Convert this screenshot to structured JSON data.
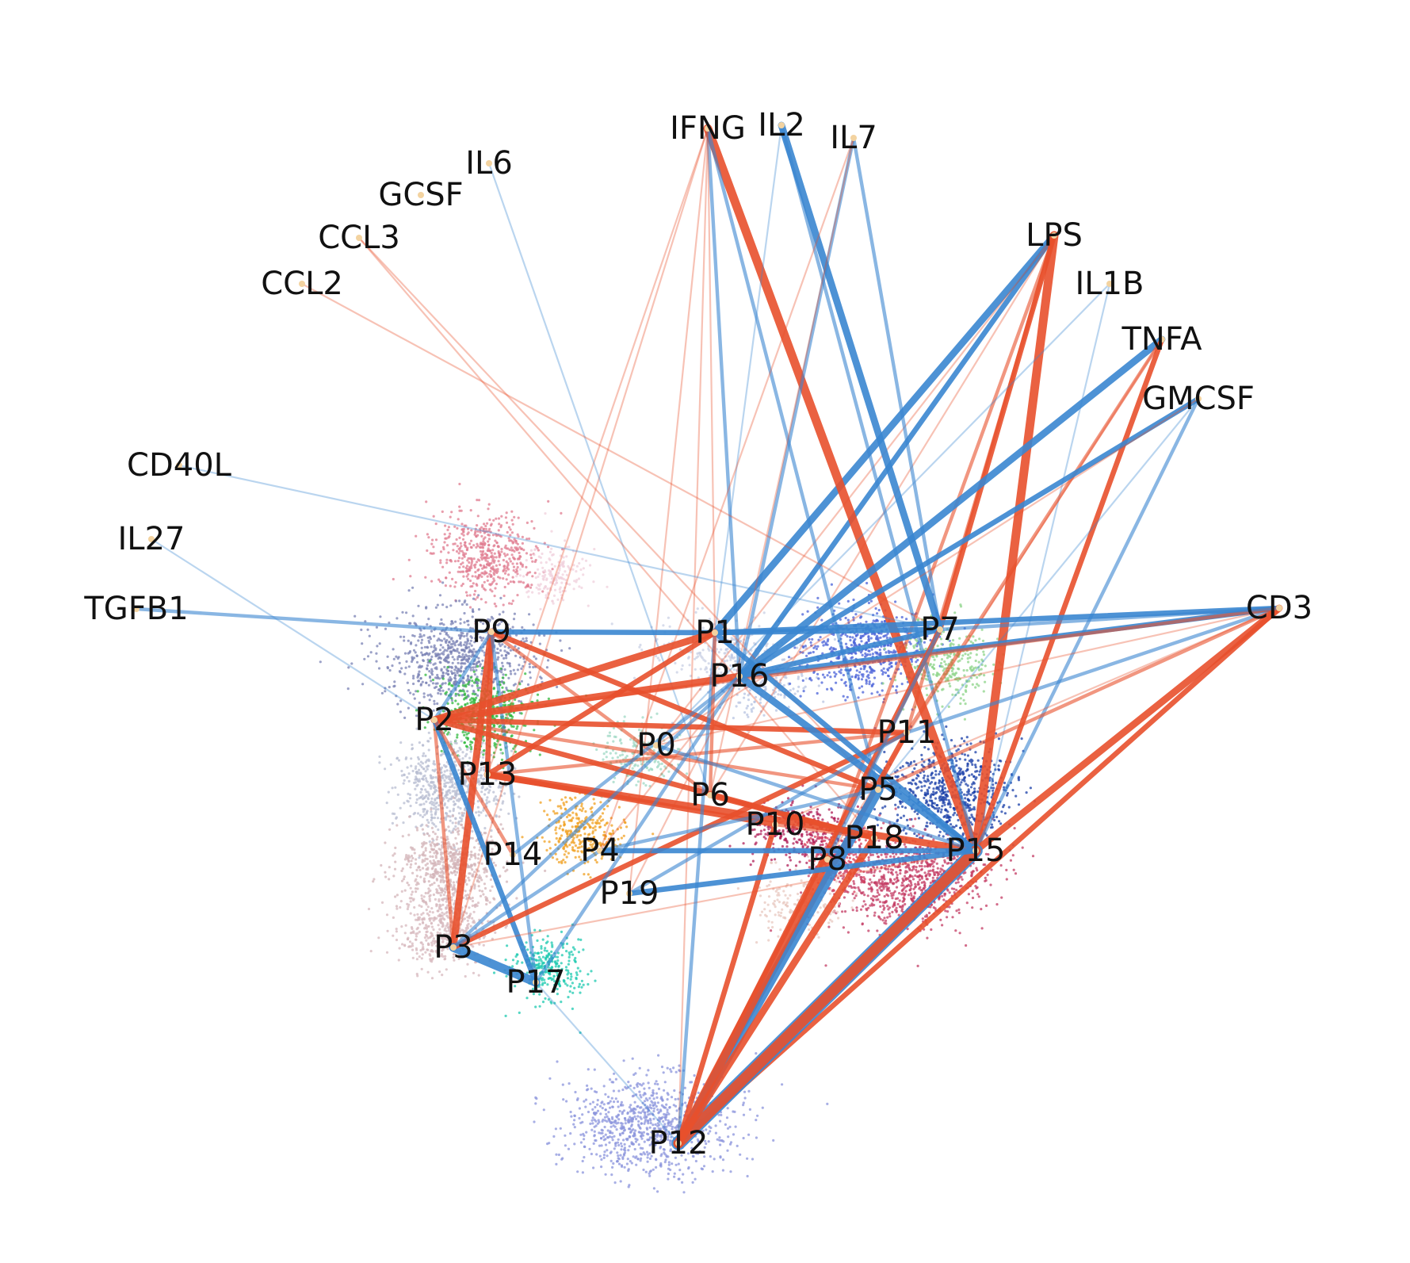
{
  "colors": {
    "positive_edge": "#e8502c",
    "negative_edge": "#3a86d0",
    "stimulus_node": "#f3d3a0"
  },
  "stimuli": [
    "IFNG",
    "IL2",
    "IL7",
    "IL6",
    "GCSF",
    "CCL3",
    "CCL2",
    "LPS",
    "IL1B",
    "TNFA",
    "GMCSF",
    "CD40L",
    "IL27",
    "TGFB1",
    "CD3"
  ],
  "programs": [
    "P0",
    "P1",
    "P2",
    "P3",
    "P4",
    "P5",
    "P6",
    "P7",
    "P8",
    "P9",
    "P10",
    "P11",
    "P12",
    "P13",
    "P14",
    "P15",
    "P16",
    "P17",
    "P18",
    "P19"
  ],
  "clusters": [
    {
      "name": "P9",
      "color": "#7a82b4"
    },
    {
      "name": "P1",
      "color": "#c9d0e4"
    },
    {
      "name": "P16",
      "color": "#b8c4e2"
    },
    {
      "name": "P7",
      "color": "#8ed48a"
    },
    {
      "name": "P2",
      "color": "#2fb83c"
    },
    {
      "name": "P13",
      "color": "#b8bdd2"
    },
    {
      "name": "P0",
      "color": "#9fd8c4"
    },
    {
      "name": "P14",
      "color": "#d3b4b8"
    },
    {
      "name": "P4",
      "color": "#f0a020"
    },
    {
      "name": "P3",
      "color": "#d7b8bd"
    },
    {
      "name": "P17",
      "color": "#1ec9b0"
    },
    {
      "name": "P12",
      "color": "#8b94dc"
    },
    {
      "name": "P11",
      "color": "#4a62d8"
    },
    {
      "name": "P15",
      "color": "#1a3fa8"
    },
    {
      "name": "P5",
      "color": "#c43c64"
    },
    {
      "name": "P10",
      "color": "#b0205a"
    },
    {
      "name": "P8",
      "color": "#e8c8c0"
    },
    {
      "name": "P18",
      "color": "#d9415e"
    },
    {
      "name": "top-pink",
      "color": "#e07c90"
    },
    {
      "name": "top-light-pink",
      "color": "#f0d0dc"
    }
  ],
  "edges": [
    {
      "source": "LPS",
      "target": "P1",
      "sign": "neg",
      "weight": 4
    },
    {
      "source": "LPS",
      "target": "P16",
      "sign": "neg",
      "weight": 3
    },
    {
      "source": "LPS",
      "target": "P7",
      "sign": "pos",
      "weight": 3
    },
    {
      "source": "LPS",
      "target": "P15",
      "sign": "pos",
      "weight": 5
    },
    {
      "source": "LPS",
      "target": "P11",
      "sign": "pos",
      "weight": 2
    },
    {
      "source": "LPS",
      "target": "P8",
      "sign": "pos",
      "weight": 2
    },
    {
      "source": "LPS",
      "target": "P6",
      "sign": "pos",
      "weight": 1
    },
    {
      "source": "LPS",
      "target": "P0",
      "sign": "pos",
      "weight": 1
    },
    {
      "source": "IFNG",
      "target": "P15",
      "sign": "pos",
      "weight": 5
    },
    {
      "source": "IFNG",
      "target": "P12",
      "sign": "pos",
      "weight": 1
    },
    {
      "source": "IFNG",
      "target": "P16",
      "sign": "neg",
      "weight": 2
    },
    {
      "source": "IFNG",
      "target": "P13",
      "sign": "pos",
      "weight": 1
    },
    {
      "source": "IFNG",
      "target": "P3",
      "sign": "pos",
      "weight": 1
    },
    {
      "source": "IFNG",
      "target": "P5",
      "sign": "neg",
      "weight": 2
    },
    {
      "source": "IFNG",
      "target": "P1",
      "sign": "pos",
      "weight": 1
    },
    {
      "source": "IFNG",
      "target": "P19",
      "sign": "pos",
      "weight": 1
    },
    {
      "source": "IL2",
      "target": "P7",
      "sign": "neg",
      "weight": 4
    },
    {
      "source": "IL2",
      "target": "P1",
      "sign": "neg",
      "weight": 1
    },
    {
      "source": "IL2",
      "target": "P15",
      "sign": "neg",
      "weight": 2
    },
    {
      "source": "IL7",
      "target": "P7",
      "sign": "neg",
      "weight": 2
    },
    {
      "source": "IL7",
      "target": "P16",
      "sign": "neg",
      "weight": 2
    },
    {
      "source": "IL7",
      "target": "P6",
      "sign": "pos",
      "weight": 1
    },
    {
      "source": "IL7",
      "target": "P4",
      "sign": "pos",
      "weight": 1
    },
    {
      "source": "IL6",
      "target": "P6",
      "sign": "neg",
      "weight": 1
    },
    {
      "source": "CCL3",
      "target": "P18",
      "sign": "pos",
      "weight": 1
    },
    {
      "source": "CCL3",
      "target": "P5",
      "sign": "pos",
      "weight": 1
    },
    {
      "source": "CCL2",
      "target": "P7",
      "sign": "pos",
      "weight": 1
    },
    {
      "source": "IL1B",
      "target": "P0",
      "sign": "neg",
      "weight": 1
    },
    {
      "source": "IL1B",
      "target": "P15",
      "sign": "neg",
      "weight": 1
    },
    {
      "source": "TNFA",
      "target": "P16",
      "sign": "neg",
      "weight": 4
    },
    {
      "source": "TNFA",
      "target": "P15",
      "sign": "pos",
      "weight": 3
    },
    {
      "source": "TNFA",
      "target": "P11",
      "sign": "pos",
      "weight": 2
    },
    {
      "source": "TNFA",
      "target": "P8",
      "sign": "pos",
      "weight": 1
    },
    {
      "source": "GMCSF",
      "target": "P16",
      "sign": "neg",
      "weight": 3
    },
    {
      "source": "GMCSF",
      "target": "P15",
      "sign": "neg",
      "weight": 2
    },
    {
      "source": "GMCSF",
      "target": "P5",
      "sign": "neg",
      "weight": 1
    },
    {
      "source": "GMCSF",
      "target": "P0",
      "sign": "pos",
      "weight": 1
    },
    {
      "source": "CD40L",
      "target": "P7",
      "sign": "neg",
      "weight": 1
    },
    {
      "source": "IL27",
      "target": "P2",
      "sign": "neg",
      "weight": 1
    },
    {
      "source": "TGFB1",
      "target": "P9",
      "sign": "neg",
      "weight": 2
    },
    {
      "source": "CD3",
      "target": "P1",
      "sign": "neg",
      "weight": 3
    },
    {
      "source": "CD3",
      "target": "P16",
      "sign": "neg",
      "weight": 3
    },
    {
      "source": "CD3",
      "target": "P11",
      "sign": "neg",
      "weight": 2
    },
    {
      "source": "CD3",
      "target": "P15",
      "sign": "pos",
      "weight": 4
    },
    {
      "source": "CD3",
      "target": "P12",
      "sign": "pos",
      "weight": 3
    },
    {
      "source": "CD3",
      "target": "P2",
      "sign": "pos",
      "weight": 2
    },
    {
      "source": "CD3",
      "target": "P5",
      "sign": "pos",
      "weight": 2
    },
    {
      "source": "CD3",
      "target": "P10",
      "sign": "pos",
      "weight": 1
    },
    {
      "source": "CD3",
      "target": "P0",
      "sign": "pos",
      "weight": 1
    },
    {
      "source": "CD3",
      "target": "P7",
      "sign": "neg",
      "weight": 2
    },
    {
      "source": "P9",
      "target": "P1",
      "sign": "neg",
      "weight": 3
    },
    {
      "source": "P9",
      "target": "P3",
      "sign": "pos",
      "weight": 4
    },
    {
      "source": "P9",
      "target": "P13",
      "sign": "pos",
      "weight": 3
    },
    {
      "source": "P9",
      "target": "P5",
      "sign": "pos",
      "weight": 3
    },
    {
      "source": "P9",
      "target": "P6",
      "sign": "pos",
      "weight": 2
    },
    {
      "source": "P9",
      "target": "P2",
      "sign": "neg",
      "weight": 2
    },
    {
      "source": "P9",
      "target": "P17",
      "sign": "neg",
      "weight": 2
    },
    {
      "source": "P2",
      "target": "P1",
      "sign": "pos",
      "weight": 4
    },
    {
      "source": "P2",
      "target": "P16",
      "sign": "pos",
      "weight": 4
    },
    {
      "source": "P2",
      "target": "P11",
      "sign": "pos",
      "weight": 3
    },
    {
      "source": "P2",
      "target": "P5",
      "sign": "pos",
      "weight": 2
    },
    {
      "source": "P2",
      "target": "P18",
      "sign": "pos",
      "weight": 3
    },
    {
      "source": "P2",
      "target": "P3",
      "sign": "pos",
      "weight": 2
    },
    {
      "source": "P2",
      "target": "P17",
      "sign": "neg",
      "weight": 3
    },
    {
      "source": "P2",
      "target": "P14",
      "sign": "pos",
      "weight": 2
    },
    {
      "source": "P13",
      "target": "P10",
      "sign": "pos",
      "weight": 3
    },
    {
      "source": "P13",
      "target": "P15",
      "sign": "pos",
      "weight": 4
    },
    {
      "source": "P13",
      "target": "P1",
      "sign": "pos",
      "weight": 3
    },
    {
      "source": "P13",
      "target": "P11",
      "sign": "pos",
      "weight": 2
    },
    {
      "source": "P3",
      "target": "P17",
      "sign": "neg",
      "weight": 5
    },
    {
      "source": "P3",
      "target": "P11",
      "sign": "pos",
      "weight": 3
    },
    {
      "source": "P3",
      "target": "P4",
      "sign": "neg",
      "weight": 2
    },
    {
      "source": "P3",
      "target": "P15",
      "sign": "pos",
      "weight": 1
    },
    {
      "source": "P16",
      "target": "P15",
      "sign": "neg",
      "weight": 4
    },
    {
      "source": "P16",
      "target": "P7",
      "sign": "neg",
      "weight": 3
    },
    {
      "source": "P16",
      "target": "P3",
      "sign": "neg",
      "weight": 2
    },
    {
      "source": "P16",
      "target": "P17",
      "sign": "neg",
      "weight": 2
    },
    {
      "source": "P1",
      "target": "P15",
      "sign": "neg",
      "weight": 3
    },
    {
      "source": "P1",
      "target": "P7",
      "sign": "neg",
      "weight": 3
    },
    {
      "source": "P1",
      "target": "P12",
      "sign": "neg",
      "weight": 2
    },
    {
      "source": "P1",
      "target": "P6",
      "sign": "pos",
      "weight": 2
    },
    {
      "source": "P7",
      "target": "P12",
      "sign": "pos",
      "weight": 3
    },
    {
      "source": "P7",
      "target": "P8",
      "sign": "neg",
      "weight": 2
    },
    {
      "source": "P11",
      "target": "P12",
      "sign": "pos",
      "weight": 3
    },
    {
      "source": "P11",
      "target": "P19",
      "sign": "neg",
      "weight": 2
    },
    {
      "source": "P5",
      "target": "P12",
      "sign": "neg",
      "weight": 6
    },
    {
      "source": "P15",
      "target": "P12",
      "sign": "neg",
      "weight": 8
    },
    {
      "source": "P15",
      "target": "P12",
      "sign": "pos",
      "weight": 6
    },
    {
      "source": "P18",
      "target": "P12",
      "sign": "pos",
      "weight": 4
    },
    {
      "source": "P8",
      "target": "P12",
      "sign": "pos",
      "weight": 5
    },
    {
      "source": "P10",
      "target": "P12",
      "sign": "pos",
      "weight": 3
    },
    {
      "source": "P15",
      "target": "P4",
      "sign": "neg",
      "weight": 3
    },
    {
      "source": "P15",
      "target": "P19",
      "sign": "neg",
      "weight": 3
    },
    {
      "source": "P5",
      "target": "P4",
      "sign": "neg",
      "weight": 2
    },
    {
      "source": "P6",
      "target": "P18",
      "sign": "pos",
      "weight": 3
    },
    {
      "source": "P10",
      "target": "P18",
      "sign": "pos",
      "weight": 2
    },
    {
      "source": "P14",
      "target": "P16",
      "sign": "neg",
      "weight": 2
    },
    {
      "source": "P0",
      "target": "P15",
      "sign": "neg",
      "weight": 2
    },
    {
      "source": "P17",
      "target": "P12",
      "sign": "neg",
      "weight": 1
    },
    {
      "source": "P19",
      "target": "P16",
      "sign": "pos",
      "weight": 1
    },
    {
      "source": "P4",
      "target": "P16",
      "sign": "pos",
      "weight": 1
    }
  ]
}
